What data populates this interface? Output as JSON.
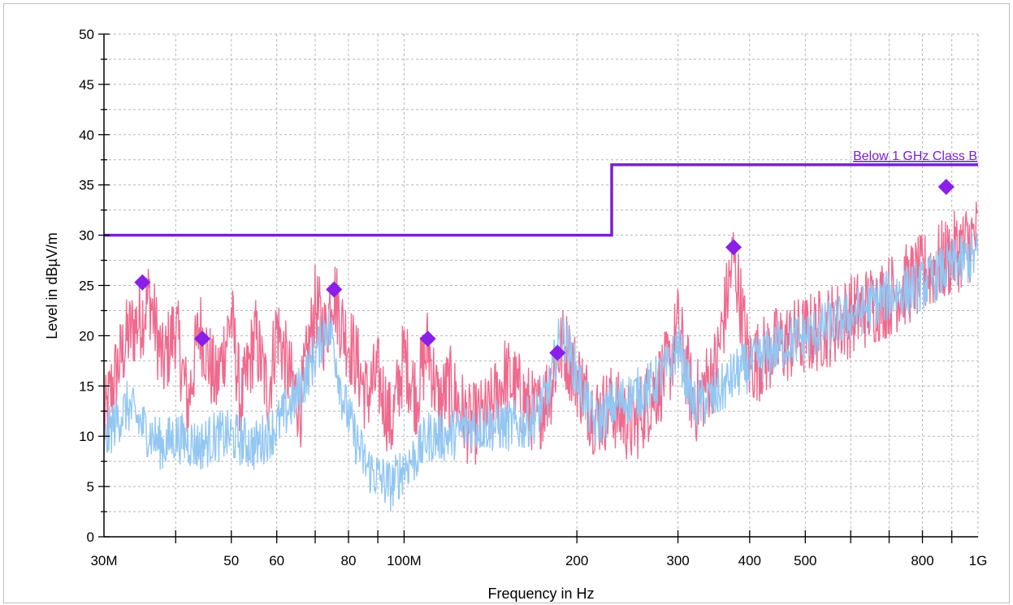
{
  "chart_data": {
    "type": "line",
    "title": "",
    "xlabel": "Frequency in Hz",
    "ylabel": "Level in dBµV/m",
    "x_scale": "log",
    "xlim": [
      30000000,
      1000000000
    ],
    "ylim": [
      0,
      50
    ],
    "grid": true,
    "y_ticks": [
      0,
      5,
      10,
      15,
      20,
      25,
      30,
      35,
      40,
      45,
      50
    ],
    "x_ticks": [
      {
        "value": 30000000,
        "label": "30M"
      },
      {
        "value": 50000000,
        "label": "50"
      },
      {
        "value": 60000000,
        "label": "60"
      },
      {
        "value": 80000000,
        "label": "80"
      },
      {
        "value": 100000000,
        "label": "100M"
      },
      {
        "value": 200000000,
        "label": "200"
      },
      {
        "value": 300000000,
        "label": "300"
      },
      {
        "value": 400000000,
        "label": "400"
      },
      {
        "value": 500000000,
        "label": "500"
      },
      {
        "value": 800000000,
        "label": "800"
      },
      {
        "value": 1000000000,
        "label": "1G"
      }
    ],
    "series": [
      {
        "color": "#f06a8e",
        "x": [
          30000000,
          31000000,
          33000000,
          35000000,
          36000000,
          38000000,
          40000000,
          42000000,
          44000000,
          45000000,
          47000000,
          50000000,
          52000000,
          55000000,
          58000000,
          60000000,
          63000000,
          66000000,
          70000000,
          73000000,
          75000000,
          78000000,
          82000000,
          86000000,
          90000000,
          95000000,
          100000000,
          105000000,
          110000000,
          115000000,
          120000000,
          130000000,
          140000000,
          150000000,
          160000000,
          170000000,
          180000000,
          185000000,
          190000000,
          200000000,
          215000000,
          230000000,
          250000000,
          270000000,
          290000000,
          300000000,
          320000000,
          350000000,
          375000000,
          400000000,
          450000000,
          500000000,
          550000000,
          600000000,
          700000000,
          800000000,
          900000000,
          1000000000
        ],
        "values": [
          11,
          15,
          20,
          22,
          24,
          17,
          21,
          13,
          21,
          19,
          15,
          22,
          13,
          20,
          14,
          21,
          16,
          13,
          23,
          20,
          25,
          21,
          18,
          14,
          16,
          11,
          18,
          14,
          19,
          13,
          15,
          11,
          12,
          16,
          14,
          12,
          15,
          18,
          19,
          16,
          12,
          13,
          11,
          14,
          17,
          21,
          13,
          17,
          28,
          17,
          19,
          20,
          21,
          22,
          24,
          26,
          28,
          30
        ]
      },
      {
        "color": "#93c7f2",
        "x": [
          30000000,
          31000000,
          33000000,
          35000000,
          38000000,
          40000000,
          44000000,
          47000000,
          50000000,
          55000000,
          60000000,
          65000000,
          70000000,
          73000000,
          75000000,
          78000000,
          82000000,
          86000000,
          90000000,
          95000000,
          100000000,
          105000000,
          110000000,
          120000000,
          130000000,
          140000000,
          150000000,
          160000000,
          170000000,
          180000000,
          185000000,
          190000000,
          200000000,
          215000000,
          230000000,
          250000000,
          270000000,
          290000000,
          300000000,
          320000000,
          350000000,
          375000000,
          400000000,
          450000000,
          500000000,
          550000000,
          600000000,
          700000000,
          800000000,
          900000000,
          1000000000
        ],
        "values": [
          9,
          11,
          13,
          11,
          9,
          10,
          9,
          10,
          10,
          9,
          11,
          14,
          18,
          21,
          20,
          14,
          10,
          7,
          6,
          5,
          7,
          8,
          10,
          10,
          11,
          11,
          11,
          11,
          12,
          15,
          19,
          20,
          16,
          11,
          13,
          14,
          15,
          17,
          19,
          13,
          14,
          16,
          17,
          19,
          20,
          21,
          22,
          24,
          25,
          27,
          28
        ]
      },
      {
        "name": "Below 1 GHz Class B",
        "color": "#7b1fd4",
        "x": [
          30000000,
          230000000,
          230000000,
          1000000000
        ],
        "values": [
          30,
          30,
          37,
          37
        ]
      }
    ],
    "markers": {
      "color": "#8a1fe8",
      "x": [
        35000000,
        44500000,
        75500000,
        110000000,
        185000000,
        375000000,
        880000000
      ],
      "values": [
        25.3,
        19.7,
        24.6,
        19.7,
        18.3,
        28.8,
        34.8
      ]
    }
  }
}
